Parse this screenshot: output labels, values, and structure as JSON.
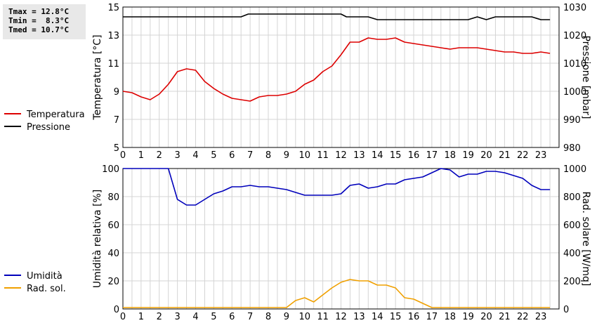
{
  "stats": {
    "tmax": "Tmax = 12.8°C",
    "tmin": "Tmin =  8.3°C",
    "tmed": "Tmed = 10.7°C"
  },
  "chart_data": [
    {
      "type": "line",
      "x_ticks": [
        "0",
        "1",
        "2",
        "3",
        "4",
        "5",
        "6",
        "7",
        "8",
        "9",
        "10",
        "11",
        "12",
        "13",
        "14",
        "15",
        "16",
        "17",
        "18",
        "19",
        "20",
        "21",
        "22",
        "23"
      ],
      "xlim": [
        0,
        24
      ],
      "ylabel_left": "Temperatura [°C]",
      "ylabel_right": "Pressione [mbar]",
      "ylim_left": [
        5,
        15
      ],
      "ylim_right": [
        980,
        1030
      ],
      "yticks_left": [
        5,
        7,
        9,
        11,
        13,
        15
      ],
      "yticks_right": [
        980,
        990,
        1000,
        1010,
        1020,
        1030
      ],
      "grid": true,
      "legend_position": "left",
      "series": [
        {
          "name": "Temperatura",
          "axis": "left",
          "color": "#dd0000",
          "x": [
            0,
            0.5,
            1,
            1.5,
            2,
            2.5,
            3,
            3.5,
            4,
            4.5,
            5,
            5.5,
            6,
            6.5,
            7,
            7.5,
            8,
            8.5,
            9,
            9.5,
            10,
            10.5,
            11,
            11.5,
            12,
            12.5,
            13,
            13.5,
            14,
            14.5,
            15,
            15.5,
            16,
            16.5,
            17,
            17.5,
            18,
            18.5,
            19,
            19.5,
            20,
            20.5,
            21,
            21.5,
            22,
            22.5,
            23,
            23.5
          ],
          "values": [
            9.0,
            8.9,
            8.6,
            8.4,
            8.8,
            9.5,
            10.4,
            10.6,
            10.5,
            9.7,
            9.2,
            8.8,
            8.5,
            8.4,
            8.3,
            8.6,
            8.7,
            8.7,
            8.8,
            9.0,
            9.5,
            9.8,
            10.4,
            10.8,
            11.6,
            12.5,
            12.5,
            12.8,
            12.7,
            12.7,
            12.8,
            12.5,
            12.4,
            12.3,
            12.2,
            12.1,
            12.0,
            12.1,
            12.1,
            12.1,
            12.0,
            11.9,
            11.8,
            11.8,
            11.7,
            11.7,
            11.8,
            11.7
          ]
        },
        {
          "name": "Pressione",
          "axis": "right",
          "color": "#000000",
          "x": [
            0,
            0.5,
            1,
            1.5,
            2,
            2.5,
            3,
            3.5,
            4,
            4.5,
            5,
            5.5,
            6,
            6.5,
            6.9,
            7.1,
            7.5,
            8,
            8.5,
            9,
            9.5,
            10,
            10.5,
            11,
            11.5,
            12,
            12.3,
            12.7,
            13,
            13.5,
            14,
            14.5,
            15,
            15.5,
            16,
            16.5,
            17,
            17.5,
            18,
            18.5,
            19,
            19.5,
            20,
            20.5,
            21,
            21.5,
            22,
            22.5,
            23,
            23.5
          ],
          "values": [
            1026.5,
            1026.5,
            1026.5,
            1026.5,
            1026.5,
            1026.5,
            1026.5,
            1026.5,
            1026.5,
            1026.5,
            1026.5,
            1026.5,
            1026.5,
            1026.5,
            1027.5,
            1027.5,
            1027.5,
            1027.5,
            1027.5,
            1027.5,
            1027.5,
            1027.5,
            1027.5,
            1027.5,
            1027.5,
            1027.5,
            1026.5,
            1026.5,
            1026.5,
            1026.5,
            1025.5,
            1025.5,
            1025.5,
            1025.5,
            1025.5,
            1025.5,
            1025.5,
            1025.5,
            1025.5,
            1025.5,
            1025.5,
            1026.5,
            1025.5,
            1026.5,
            1026.5,
            1026.5,
            1026.5,
            1026.5,
            1025.5,
            1025.5
          ]
        }
      ]
    },
    {
      "type": "line",
      "x_ticks": [
        "0",
        "1",
        "2",
        "3",
        "4",
        "5",
        "6",
        "7",
        "8",
        "9",
        "10",
        "11",
        "12",
        "13",
        "14",
        "15",
        "16",
        "17",
        "18",
        "19",
        "20",
        "21",
        "22",
        "23"
      ],
      "xlim": [
        0,
        24
      ],
      "ylabel_left": "Umidità relativa [%]",
      "ylabel_right": "Rad. solare [W/mq]",
      "ylim_left": [
        0,
        100
      ],
      "ylim_right": [
        0,
        1000
      ],
      "yticks_left": [
        0,
        20,
        40,
        60,
        80,
        100
      ],
      "yticks_right": [
        0,
        200,
        400,
        600,
        800,
        1000
      ],
      "grid": true,
      "legend_position": "left",
      "series": [
        {
          "name": "Umidità",
          "axis": "left",
          "color": "#0000bb",
          "x": [
            0,
            0.5,
            1,
            1.5,
            2,
            2.5,
            3,
            3.5,
            4,
            4.5,
            5,
            5.5,
            6,
            6.5,
            7,
            7.5,
            8,
            8.5,
            9,
            9.5,
            10,
            10.5,
            11,
            11.5,
            12,
            12.5,
            13,
            13.5,
            14,
            14.5,
            15,
            15.5,
            16,
            16.5,
            17,
            17.5,
            18,
            18.5,
            19,
            19.5,
            20,
            20.5,
            21,
            21.5,
            22,
            22.5,
            23,
            23.5
          ],
          "values": [
            100,
            100,
            100,
            100,
            100,
            100,
            78,
            74,
            74,
            78,
            82,
            84,
            87,
            87,
            88,
            87,
            87,
            86,
            85,
            83,
            81,
            81,
            81,
            81,
            82,
            88,
            89,
            86,
            87,
            89,
            89,
            92,
            93,
            94,
            97,
            100,
            99,
            94,
            96,
            96,
            98,
            98,
            97,
            95,
            93,
            88,
            85,
            85
          ]
        },
        {
          "name": "Rad. sol.",
          "axis": "right",
          "color": "#f0a000",
          "x": [
            0,
            0.5,
            1,
            1.5,
            2,
            2.5,
            3,
            3.5,
            4,
            4.5,
            5,
            5.5,
            6,
            6.5,
            7,
            7.5,
            8,
            8.5,
            9,
            9.5,
            10,
            10.5,
            11,
            11.5,
            12,
            12.5,
            13,
            13.5,
            14,
            14.5,
            15,
            15.5,
            16,
            16.5,
            17,
            17.5,
            18,
            18.5,
            19,
            19.5,
            20,
            20.5,
            21,
            21.5,
            22,
            22.5,
            23,
            23.5
          ],
          "values": [
            10,
            10,
            10,
            10,
            10,
            10,
            10,
            10,
            10,
            10,
            10,
            10,
            10,
            10,
            10,
            10,
            10,
            10,
            10,
            60,
            80,
            50,
            100,
            150,
            190,
            210,
            200,
            200,
            170,
            170,
            150,
            80,
            70,
            40,
            10,
            10,
            10,
            10,
            10,
            10,
            10,
            10,
            10,
            10,
            10,
            10,
            10,
            10
          ]
        }
      ]
    }
  ]
}
